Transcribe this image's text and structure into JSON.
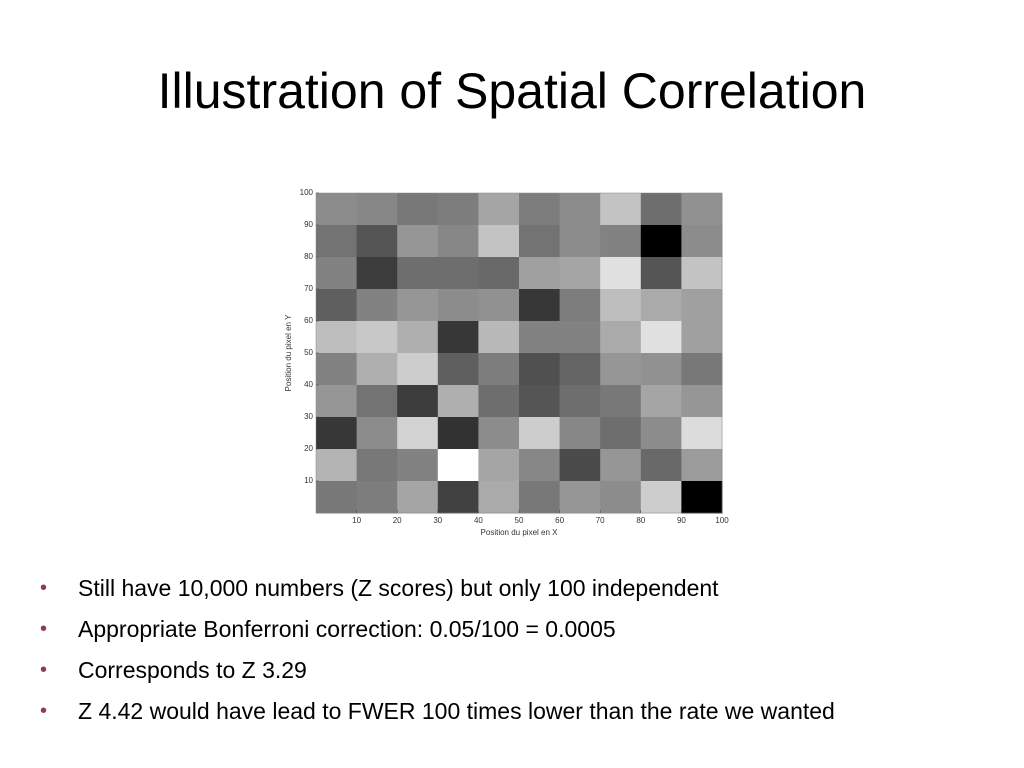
{
  "title": "Illustration of Spatial Correlation",
  "chart_data": {
    "type": "heatmap",
    "x_label": "Position du pixel en X",
    "y_label": "Position du pixel en Y",
    "xlim": [
      0,
      100
    ],
    "ylim": [
      0,
      100
    ],
    "xticks": [
      10,
      20,
      30,
      40,
      50,
      60,
      70,
      80,
      90,
      100
    ],
    "yticks": [
      10,
      20,
      30,
      40,
      50,
      60,
      70,
      80,
      90,
      100
    ],
    "values": [
      [
        140,
        135,
        120,
        125,
        165,
        125,
        140,
        195,
        110,
        145
      ],
      [
        115,
        85,
        150,
        135,
        195,
        115,
        140,
        130,
        0,
        140
      ],
      [
        130,
        60,
        110,
        110,
        105,
        160,
        165,
        225,
        85,
        195
      ],
      [
        95,
        130,
        150,
        140,
        145,
        55,
        125,
        190,
        170,
        160
      ],
      [
        190,
        200,
        175,
        55,
        185,
        130,
        130,
        170,
        225,
        160
      ],
      [
        130,
        175,
        205,
        95,
        125,
        80,
        100,
        150,
        145,
        120
      ],
      [
        150,
        115,
        60,
        175,
        110,
        85,
        110,
        120,
        165,
        150
      ],
      [
        55,
        140,
        210,
        50,
        140,
        205,
        135,
        110,
        140,
        220
      ],
      [
        180,
        120,
        130,
        255,
        165,
        135,
        75,
        150,
        105,
        155
      ],
      [
        120,
        125,
        165,
        65,
        170,
        120,
        150,
        140,
        205,
        0
      ]
    ]
  },
  "bullets": [
    "Still have 10,000 numbers (Z scores) but only 100 independent",
    "Appropriate Bonferroni correction: 0.05/100 = 0.0005",
    "Corresponds to Z 3.29",
    "Z 4.42 would have lead to FWER 100 times lower than the rate we wanted"
  ]
}
